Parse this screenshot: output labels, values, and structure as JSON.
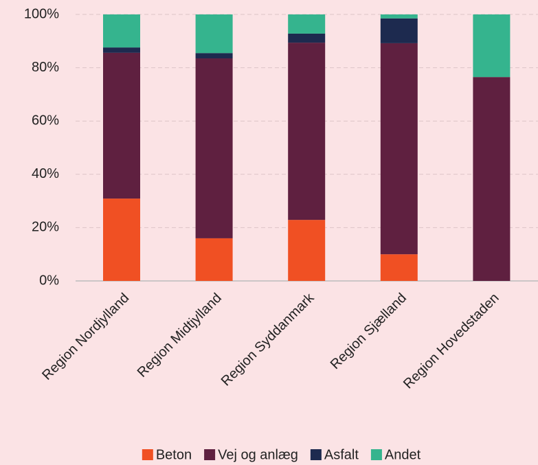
{
  "chart_data": {
    "type": "stacked_bar",
    "categories": [
      "Region Nordjylland",
      "Region Midtjylland",
      "Region Syddanmark",
      "Region Sjælland",
      "Region Hovedstaden"
    ],
    "series": [
      {
        "name": "Beton",
        "color": "#f05023",
        "values": [
          30.9,
          16.0,
          22.9,
          10.0,
          0
        ]
      },
      {
        "name": "Vej og anlæg",
        "color": "#5f2040",
        "values": [
          54.7,
          67.5,
          66.5,
          79.2,
          76.5
        ]
      },
      {
        "name": "Asfalt",
        "color": "#1d2a4f",
        "values": [
          2.0,
          2.0,
          3.4,
          9.3,
          0
        ]
      },
      {
        "name": "Andet",
        "color": "#35b48e",
        "values": [
          12.4,
          14.5,
          7.2,
          1.5,
          23.5
        ]
      }
    ],
    "ylim": [
      0,
      100
    ],
    "yticks": [
      {
        "value": 0,
        "label": "0%"
      },
      {
        "value": 20,
        "label": "20%"
      },
      {
        "value": 40,
        "label": "40%"
      },
      {
        "value": 60,
        "label": "60%"
      },
      {
        "value": 80,
        "label": "80%"
      },
      {
        "value": 100,
        "label": "100%"
      }
    ],
    "grid": true,
    "legend": "bottom"
  }
}
